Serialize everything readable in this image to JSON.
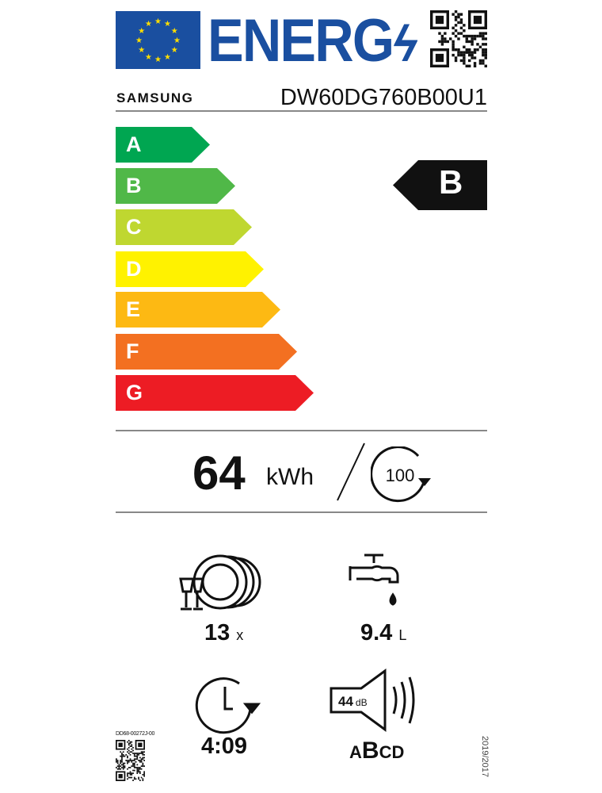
{
  "header": {
    "logo_text": "ENERG",
    "brand": "SAMSUNG",
    "model": "DW60DG760B00U1"
  },
  "scale": {
    "classes": [
      {
        "label": "A",
        "color": "#00a651"
      },
      {
        "label": "B",
        "color": "#50b848"
      },
      {
        "label": "C",
        "color": "#bfd730"
      },
      {
        "label": "D",
        "color": "#fff200"
      },
      {
        "label": "E",
        "color": "#fdb913"
      },
      {
        "label": "F",
        "color": "#f37021"
      },
      {
        "label": "G",
        "color": "#ed1c24"
      }
    ],
    "rating": "B"
  },
  "energy": {
    "value": "64",
    "unit": "kWh",
    "cycles": "100"
  },
  "specs": {
    "place_settings": {
      "value": "13",
      "unit": "x"
    },
    "water": {
      "value": "9.4",
      "unit": "L"
    },
    "duration": {
      "value": "4:09"
    },
    "noise": {
      "value": "44",
      "unit": "dB",
      "classes": [
        "A",
        "B",
        "C",
        "D"
      ],
      "selected": "B"
    }
  },
  "footer": {
    "code": "DD68-00272J-00",
    "regulation": "2019/2017"
  }
}
